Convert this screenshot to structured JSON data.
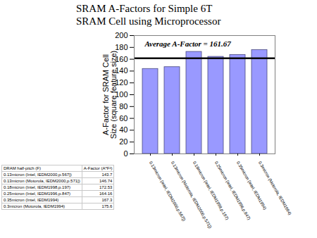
{
  "chart_data": {
    "type": "bar",
    "title": "SRAM A-Factors for Simple 6T SRAM Cell using Microprocessor Logic CMOS Process Technology",
    "y_label": "A-Factor for SRAM Cell Size (square feature size)",
    "categories": [
      "0.13micron (Intel, IEDM2000,p.567])",
      "0.13micron (Motorola, IEDM2000,p.571])",
      "0.18micron (Intel, IEDM1998,p.197)",
      "0.25micron (Intel, IEDM1996,p.847)",
      "0.35micron (Intel, IEDM1994)",
      "0.3micron (Motorola, IEDM1994)"
    ],
    "values": [
      143.7,
      146.74,
      172.53,
      164.16,
      167.3,
      175.6
    ],
    "color": "#9999ff",
    "ylim": [
      0,
      200
    ],
    "yticks": [
      0,
      20,
      40,
      60,
      80,
      100,
      120,
      140,
      160,
      180,
      200
    ],
    "grid": false,
    "reference_lines": [
      {
        "value": 161.67,
        "label": "Average A-Factor = 161.67"
      }
    ]
  },
  "table": {
    "header": [
      "DRAM half-pitch (F)",
      "A-Factor (A*F²)"
    ],
    "rows": [
      [
        "0.13micron (Intel, IEDM2000,p.567])",
        143.7
      ],
      [
        "0.13micron (Motorola, IEDM2000,p.571])",
        146.74
      ],
      [
        "0.18micron (Intel, IEDM1998,p.197)",
        172.53
      ],
      [
        "0.25micron (Intel, IEDM1996,p.847)",
        164.16
      ],
      [
        "0.35micron (Intel, IEDM1994)",
        167.3
      ],
      [
        "0.3micron (Motorola, IEDM1994)",
        175.6
      ]
    ]
  }
}
